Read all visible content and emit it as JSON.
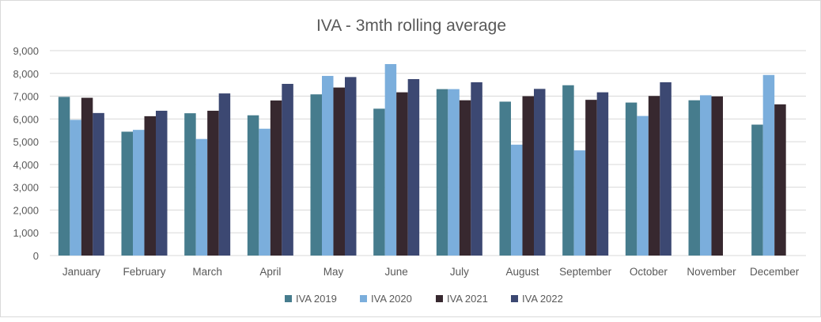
{
  "chart_data": {
    "type": "bar",
    "title": "IVA - 3mth rolling average",
    "xlabel": "",
    "ylabel": "",
    "ylim": [
      0,
      9000
    ],
    "yticks": [
      0,
      1000,
      2000,
      3000,
      4000,
      5000,
      6000,
      7000,
      8000,
      9000
    ],
    "ytick_labels": [
      "0",
      "1,000",
      "2,000",
      "3,000",
      "4,000",
      "5,000",
      "6,000",
      "7,000",
      "8,000",
      "9,000"
    ],
    "grid": true,
    "legend": "bottom",
    "categories": [
      "January",
      "February",
      "March",
      "April",
      "May",
      "June",
      "July",
      "August",
      "September",
      "October",
      "November",
      "December"
    ],
    "series": [
      {
        "name": "IVA 2019",
        "color": "#467C8D",
        "values": [
          6970,
          5440,
          6250,
          6160,
          7080,
          6450,
          7310,
          6760,
          7480,
          6720,
          6820,
          5750
        ]
      },
      {
        "name": "IVA 2020",
        "color": "#7BAEDC",
        "values": [
          5960,
          5520,
          5120,
          5570,
          7890,
          8410,
          7310,
          4870,
          4620,
          6130,
          7040,
          7930
        ]
      },
      {
        "name": "IVA 2021",
        "color": "#37282F",
        "values": [
          6930,
          6120,
          6360,
          6810,
          7380,
          7170,
          6820,
          7000,
          6840,
          7010,
          6990,
          6640
        ]
      },
      {
        "name": "IVA 2022",
        "color": "#3C4872",
        "values": [
          6260,
          6360,
          7120,
          7540,
          7840,
          7750,
          7610,
          7320,
          7170,
          7610,
          null,
          null
        ]
      }
    ]
  }
}
